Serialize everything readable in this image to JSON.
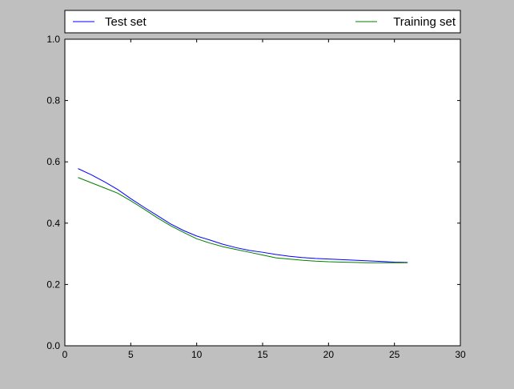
{
  "colors": {
    "figure_background": "#bfbfbf",
    "axes_background": "#ffffff",
    "test_series": "#0000ff",
    "training_series": "#007f00",
    "frame": "#000000"
  },
  "chart_data": {
    "type": "line",
    "title": "",
    "xlabel": "",
    "ylabel": "",
    "xlim": [
      0,
      30
    ],
    "ylim": [
      0.0,
      1.0
    ],
    "x_ticks": [
      "0",
      "5",
      "10",
      "15",
      "20",
      "25",
      "30"
    ],
    "y_ticks": [
      "0.0",
      "0.2",
      "0.4",
      "0.6",
      "0.8",
      "1.0"
    ],
    "grid": false,
    "legend_placement": "top, above plot, spanning full width",
    "x": [
      1,
      2,
      3,
      4,
      5,
      6,
      7,
      8,
      9,
      10,
      11,
      12,
      13,
      14,
      15,
      16,
      17,
      18,
      19,
      20,
      21,
      22,
      23,
      24,
      25,
      26
    ],
    "series": [
      {
        "name": "Test set",
        "color": "#0000ff",
        "values": [
          0.578,
          0.558,
          0.535,
          0.51,
          0.48,
          0.452,
          0.425,
          0.398,
          0.376,
          0.358,
          0.345,
          0.331,
          0.32,
          0.311,
          0.305,
          0.298,
          0.292,
          0.288,
          0.285,
          0.283,
          0.281,
          0.279,
          0.277,
          0.275,
          0.273,
          0.272
        ]
      },
      {
        "name": "Training set",
        "color": "#007f00",
        "values": [
          0.549,
          0.532,
          0.515,
          0.498,
          0.473,
          0.446,
          0.418,
          0.392,
          0.37,
          0.349,
          0.335,
          0.323,
          0.314,
          0.305,
          0.296,
          0.287,
          0.283,
          0.279,
          0.276,
          0.274,
          0.273,
          0.272,
          0.271,
          0.271,
          0.271,
          0.271
        ]
      }
    ]
  }
}
